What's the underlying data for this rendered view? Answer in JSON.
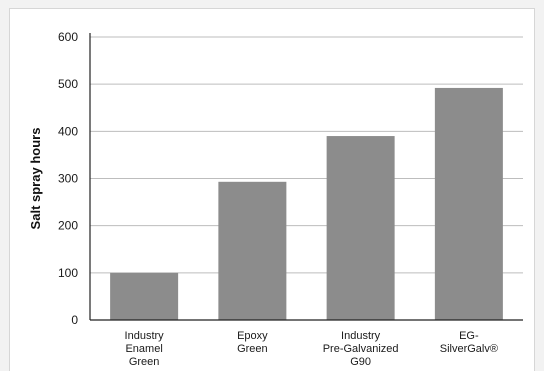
{
  "chart_data": {
    "type": "bar",
    "title": "",
    "xlabel": "",
    "ylabel": "Salt spray hours",
    "categories": [
      [
        "Industry",
        "Enamel",
        "Green"
      ],
      [
        "Epoxy",
        "Green"
      ],
      [
        "Industry",
        "Pre-Galvanized",
        "G90"
      ],
      [
        "EG-",
        "SilverGalv®"
      ]
    ],
    "values": [
      100,
      293,
      390,
      492
    ],
    "ylim": [
      0,
      600
    ],
    "yticks": [
      0,
      100,
      200,
      300,
      400,
      500,
      600
    ],
    "grid": true,
    "legend": "none",
    "colors": {
      "bar": "#8c8c8c",
      "grid": "#bdbdbd",
      "axis": "#222222"
    }
  }
}
